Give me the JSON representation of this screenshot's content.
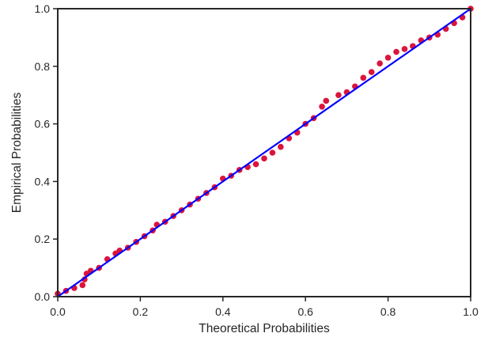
{
  "chart_data": {
    "type": "scatter",
    "title": "",
    "xlabel": "Theoretical Probabilities",
    "ylabel": "Empirical Probabilities",
    "xlim": [
      0.0,
      1.0
    ],
    "ylim": [
      0.0,
      1.0
    ],
    "x_ticks": [
      "0.0",
      "0.2",
      "0.4",
      "0.6",
      "0.8",
      "1.0"
    ],
    "y_ticks": [
      "0.0",
      "0.2",
      "0.4",
      "0.6",
      "0.8",
      "1.0"
    ],
    "grid": false,
    "legend": "none",
    "series": [
      {
        "kind": "points",
        "color": "#dc143c",
        "x": [
          0.0,
          0.02,
          0.04,
          0.06,
          0.065,
          0.07,
          0.08,
          0.1,
          0.12,
          0.14,
          0.15,
          0.17,
          0.19,
          0.21,
          0.23,
          0.24,
          0.26,
          0.28,
          0.3,
          0.32,
          0.34,
          0.36,
          0.38,
          0.4,
          0.42,
          0.44,
          0.46,
          0.48,
          0.5,
          0.52,
          0.54,
          0.56,
          0.58,
          0.6,
          0.62,
          0.64,
          0.65,
          0.68,
          0.7,
          0.72,
          0.74,
          0.76,
          0.78,
          0.8,
          0.82,
          0.84,
          0.86,
          0.88,
          0.9,
          0.92,
          0.94,
          0.96,
          0.98,
          1.0
        ],
        "y": [
          0.01,
          0.02,
          0.03,
          0.04,
          0.06,
          0.08,
          0.09,
          0.1,
          0.13,
          0.15,
          0.16,
          0.17,
          0.19,
          0.21,
          0.23,
          0.25,
          0.26,
          0.28,
          0.3,
          0.32,
          0.34,
          0.36,
          0.38,
          0.41,
          0.42,
          0.44,
          0.45,
          0.46,
          0.48,
          0.5,
          0.52,
          0.55,
          0.57,
          0.6,
          0.62,
          0.66,
          0.68,
          0.7,
          0.71,
          0.73,
          0.76,
          0.78,
          0.81,
          0.83,
          0.85,
          0.86,
          0.87,
          0.89,
          0.9,
          0.91,
          0.93,
          0.95,
          0.97,
          1.0
        ]
      },
      {
        "kind": "line",
        "color": "#0000ff",
        "x": [
          0.0,
          1.0
        ],
        "y": [
          0.0,
          1.0
        ]
      }
    ]
  }
}
